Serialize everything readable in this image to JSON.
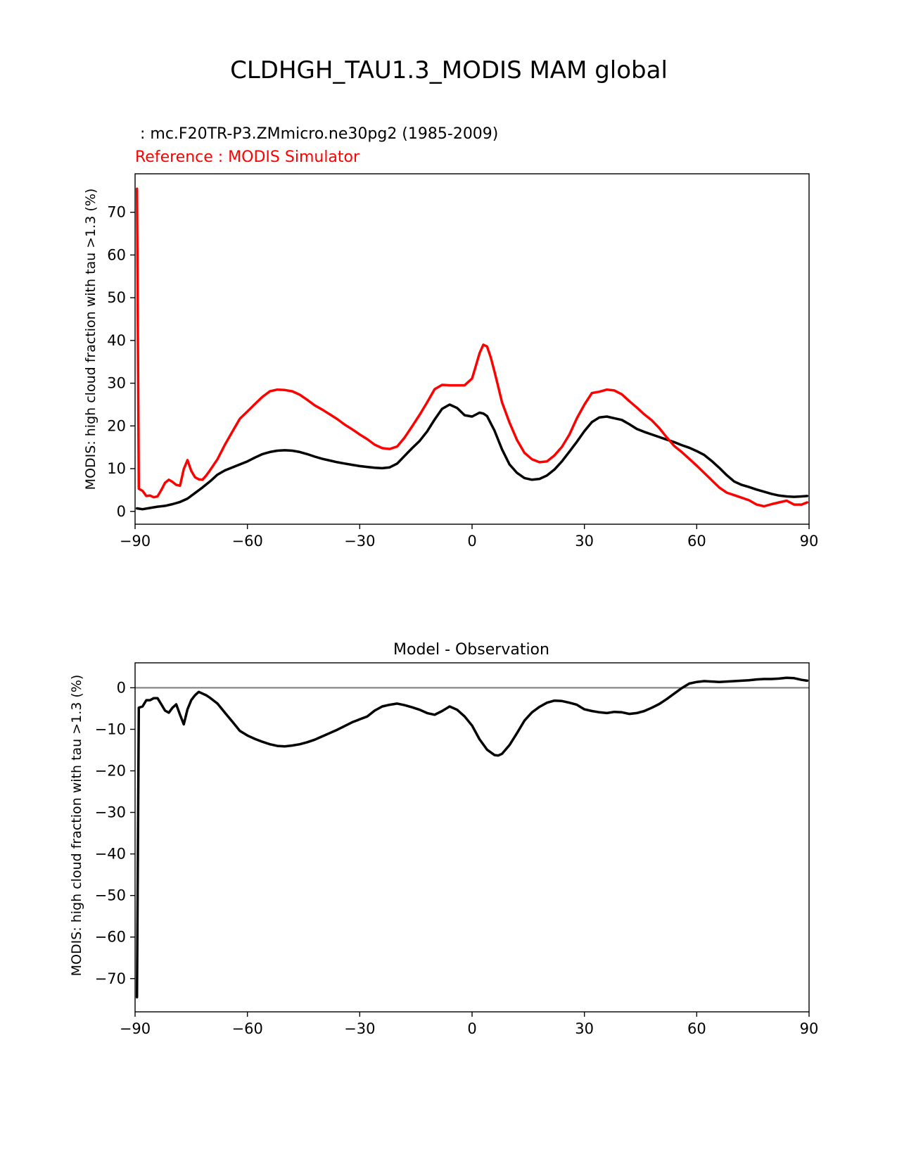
{
  "figure": {
    "title": "CLDHGH_TAU1.3_MODIS MAM global"
  },
  "colors": {
    "model": "#000000",
    "reference": "#ff0000",
    "zero_line": "#808080",
    "axes": "#000000",
    "background": "#ffffff"
  },
  "chart_data": [
    {
      "type": "line",
      "title": "",
      "test_label": " : mc.F20TR-P3.ZMmicro.ne30pg2 (1985-2009)",
      "reference_label": "Reference : MODIS Simulator",
      "xlabel": "",
      "ylabel": "MODIS: high cloud fraction with tau >1.3 (%)",
      "xlim": [
        -90,
        90
      ],
      "ylim": [
        -3,
        79
      ],
      "xticks": [
        -90,
        -60,
        -30,
        0,
        30,
        60,
        90
      ],
      "xtick_labels": [
        "−90",
        "−60",
        "−30",
        "0",
        "30",
        "60",
        "90"
      ],
      "yticks": [
        0,
        10,
        20,
        30,
        40,
        50,
        60,
        70
      ],
      "ytick_labels": [
        "0",
        "10",
        "20",
        "30",
        "40",
        "50",
        "60",
        "70"
      ],
      "grid": false,
      "series": [
        {
          "role": "test",
          "color": "#000000",
          "x": [
            -89.5,
            -88,
            -86,
            -84,
            -82,
            -80,
            -78,
            -76,
            -74,
            -72,
            -70,
            -68,
            -66,
            -64,
            -62,
            -60,
            -58,
            -56,
            -54,
            -52,
            -50,
            -48,
            -46,
            -44,
            -42,
            -40,
            -38,
            -36,
            -34,
            -32,
            -30,
            -28,
            -26,
            -24,
            -22,
            -20,
            -18,
            -16,
            -14,
            -12,
            -10,
            -8,
            -6,
            -4,
            -2,
            0,
            2,
            3,
            4,
            6,
            8,
            10,
            12,
            14,
            16,
            18,
            20,
            22,
            24,
            26,
            28,
            30,
            32,
            34,
            36,
            38,
            40,
            42,
            44,
            46,
            48,
            50,
            52,
            54,
            56,
            58,
            60,
            62,
            64,
            66,
            68,
            70,
            72,
            74,
            76,
            78,
            80,
            82,
            84,
            86,
            88,
            89.5
          ],
          "y": [
            0.7,
            0.5,
            0.8,
            1.1,
            1.3,
            1.7,
            2.2,
            3.0,
            4.3,
            5.6,
            7.0,
            8.6,
            9.6,
            10.3,
            11.0,
            11.7,
            12.6,
            13.4,
            13.9,
            14.2,
            14.3,
            14.2,
            13.9,
            13.4,
            12.8,
            12.3,
            11.9,
            11.5,
            11.2,
            10.9,
            10.6,
            10.4,
            10.2,
            10.1,
            10.3,
            11.2,
            13.0,
            14.8,
            16.5,
            18.7,
            21.5,
            24.0,
            25.0,
            24.2,
            22.5,
            22.2,
            23.1,
            22.9,
            22.3,
            18.9,
            14.5,
            11.0,
            9.0,
            7.8,
            7.4,
            7.6,
            8.4,
            9.8,
            11.7,
            14.0,
            16.3,
            18.8,
            20.9,
            22.0,
            22.2,
            21.8,
            21.4,
            20.4,
            19.3,
            18.6,
            18.0,
            17.4,
            16.8,
            16.2,
            15.5,
            14.9,
            14.1,
            13.2,
            11.8,
            10.2,
            8.5,
            7.0,
            6.2,
            5.7,
            5.1,
            4.6,
            4.1,
            3.7,
            3.5,
            3.4,
            3.5,
            3.6
          ]
        },
        {
          "role": "reference",
          "color": "#ff0000",
          "x": [
            -89.5,
            -89,
            -88,
            -87,
            -86,
            -85,
            -84,
            -83,
            -82,
            -81,
            -80,
            -79,
            -78,
            -77,
            -76,
            -75,
            -74,
            -73,
            -72,
            -71,
            -70,
            -68,
            -66,
            -64,
            -62,
            -60,
            -58,
            -56,
            -54,
            -52,
            -50,
            -48,
            -46,
            -44,
            -42,
            -40,
            -38,
            -36,
            -34,
            -32,
            -30,
            -28,
            -26,
            -24,
            -22,
            -20,
            -18,
            -16,
            -14,
            -12,
            -10,
            -8,
            -6,
            -4,
            -2,
            0,
            1,
            2,
            3,
            4,
            5,
            6,
            7,
            8,
            10,
            12,
            14,
            16,
            18,
            20,
            22,
            24,
            26,
            28,
            30,
            32,
            34,
            36,
            38,
            40,
            42,
            44,
            46,
            48,
            50,
            52,
            54,
            56,
            58,
            60,
            62,
            64,
            66,
            68,
            70,
            72,
            74,
            76,
            78,
            80,
            82,
            84,
            86,
            88,
            89.5
          ],
          "y": [
            75.5,
            5.3,
            4.8,
            3.6,
            3.7,
            3.3,
            3.5,
            5.0,
            6.7,
            7.4,
            6.9,
            6.2,
            6.0,
            9.9,
            12.0,
            9.5,
            8.0,
            7.5,
            7.4,
            8.4,
            9.6,
            12.2,
            15.6,
            18.7,
            21.7,
            23.4,
            25.1,
            26.8,
            28.1,
            28.5,
            28.4,
            28.1,
            27.3,
            26.1,
            24.8,
            23.8,
            22.7,
            21.6,
            20.3,
            19.2,
            18.0,
            16.9,
            15.6,
            14.8,
            14.6,
            15.2,
            17.3,
            19.9,
            22.6,
            25.5,
            28.6,
            29.6,
            29.5,
            29.5,
            29.5,
            31.1,
            34.0,
            37.0,
            39.0,
            38.6,
            36.0,
            32.7,
            29.1,
            25.5,
            20.8,
            16.7,
            13.7,
            12.2,
            11.5,
            11.7,
            13.1,
            15.1,
            18.0,
            21.8,
            25.0,
            27.7,
            28.0,
            28.5,
            28.3,
            27.4,
            25.8,
            24.3,
            22.7,
            21.3,
            19.5,
            17.3,
            15.3,
            13.9,
            12.3,
            10.7,
            9.0,
            7.3,
            5.6,
            4.4,
            3.8,
            3.2,
            2.6,
            1.6,
            1.2,
            1.7,
            2.1,
            2.5,
            1.6,
            1.6,
            2.1
          ]
        }
      ]
    },
    {
      "type": "line",
      "title": "Model - Observation",
      "xlabel": "",
      "ylabel": "MODIS: high cloud fraction with tau >1.3 (%)",
      "xlim": [
        -90,
        90
      ],
      "ylim": [
        -78,
        6
      ],
      "xticks": [
        -90,
        -60,
        -30,
        0,
        30,
        60,
        90
      ],
      "xtick_labels": [
        "−90",
        "−60",
        "−30",
        "0",
        "30",
        "60",
        "90"
      ],
      "yticks": [
        0,
        -10,
        -20,
        -30,
        -40,
        -50,
        -60,
        -70
      ],
      "ytick_labels": [
        "0",
        "−10",
        "−20",
        "−30",
        "−40",
        "−50",
        "−60",
        "−70"
      ],
      "grid": false,
      "zero_line": true,
      "series": [
        {
          "role": "difference",
          "color": "#000000",
          "x": [
            -89.5,
            -89,
            -88,
            -87,
            -86,
            -85,
            -84,
            -83,
            -82,
            -81,
            -80,
            -79,
            -78,
            -77,
            -76,
            -75,
            -74,
            -73,
            -72,
            -71,
            -70,
            -68,
            -66,
            -64,
            -62,
            -60,
            -58,
            -56,
            -54,
            -52,
            -50,
            -48,
            -46,
            -44,
            -42,
            -40,
            -38,
            -36,
            -34,
            -32,
            -30,
            -28,
            -26,
            -24,
            -22,
            -20,
            -18,
            -16,
            -14,
            -12,
            -10,
            -8,
            -6,
            -4,
            -2,
            0,
            2,
            4,
            6,
            7,
            8,
            10,
            12,
            14,
            16,
            18,
            20,
            22,
            24,
            26,
            28,
            30,
            32,
            34,
            36,
            38,
            40,
            42,
            44,
            46,
            48,
            50,
            52,
            54,
            56,
            58,
            60,
            62,
            64,
            66,
            68,
            70,
            72,
            74,
            76,
            78,
            80,
            82,
            84,
            86,
            88,
            89.5
          ],
          "y": [
            -74.5,
            -4.8,
            -4.5,
            -3.0,
            -3.0,
            -2.5,
            -2.5,
            -4.0,
            -5.5,
            -6.0,
            -4.8,
            -4.0,
            -6.5,
            -8.8,
            -5.2,
            -3.0,
            -1.8,
            -1.0,
            -1.4,
            -1.8,
            -2.4,
            -3.8,
            -6.0,
            -8.2,
            -10.4,
            -11.5,
            -12.3,
            -13.0,
            -13.6,
            -14.0,
            -14.1,
            -13.9,
            -13.6,
            -13.1,
            -12.5,
            -11.7,
            -10.9,
            -10.1,
            -9.2,
            -8.3,
            -7.6,
            -6.9,
            -5.5,
            -4.5,
            -4.1,
            -3.8,
            -4.2,
            -4.7,
            -5.3,
            -6.1,
            -6.5,
            -5.6,
            -4.5,
            -5.3,
            -6.9,
            -9.1,
            -12.4,
            -14.9,
            -16.2,
            -16.3,
            -15.9,
            -13.8,
            -10.9,
            -7.9,
            -5.9,
            -4.6,
            -3.6,
            -3.1,
            -3.2,
            -3.6,
            -4.1,
            -5.2,
            -5.6,
            -5.9,
            -6.1,
            -5.8,
            -5.9,
            -6.3,
            -6.1,
            -5.6,
            -4.8,
            -3.9,
            -2.7,
            -1.4,
            -0.1,
            1.0,
            1.4,
            1.6,
            1.5,
            1.4,
            1.5,
            1.6,
            1.7,
            1.8,
            2.0,
            2.1,
            2.1,
            2.2,
            2.4,
            2.3,
            1.9,
            1.7
          ]
        }
      ]
    }
  ]
}
